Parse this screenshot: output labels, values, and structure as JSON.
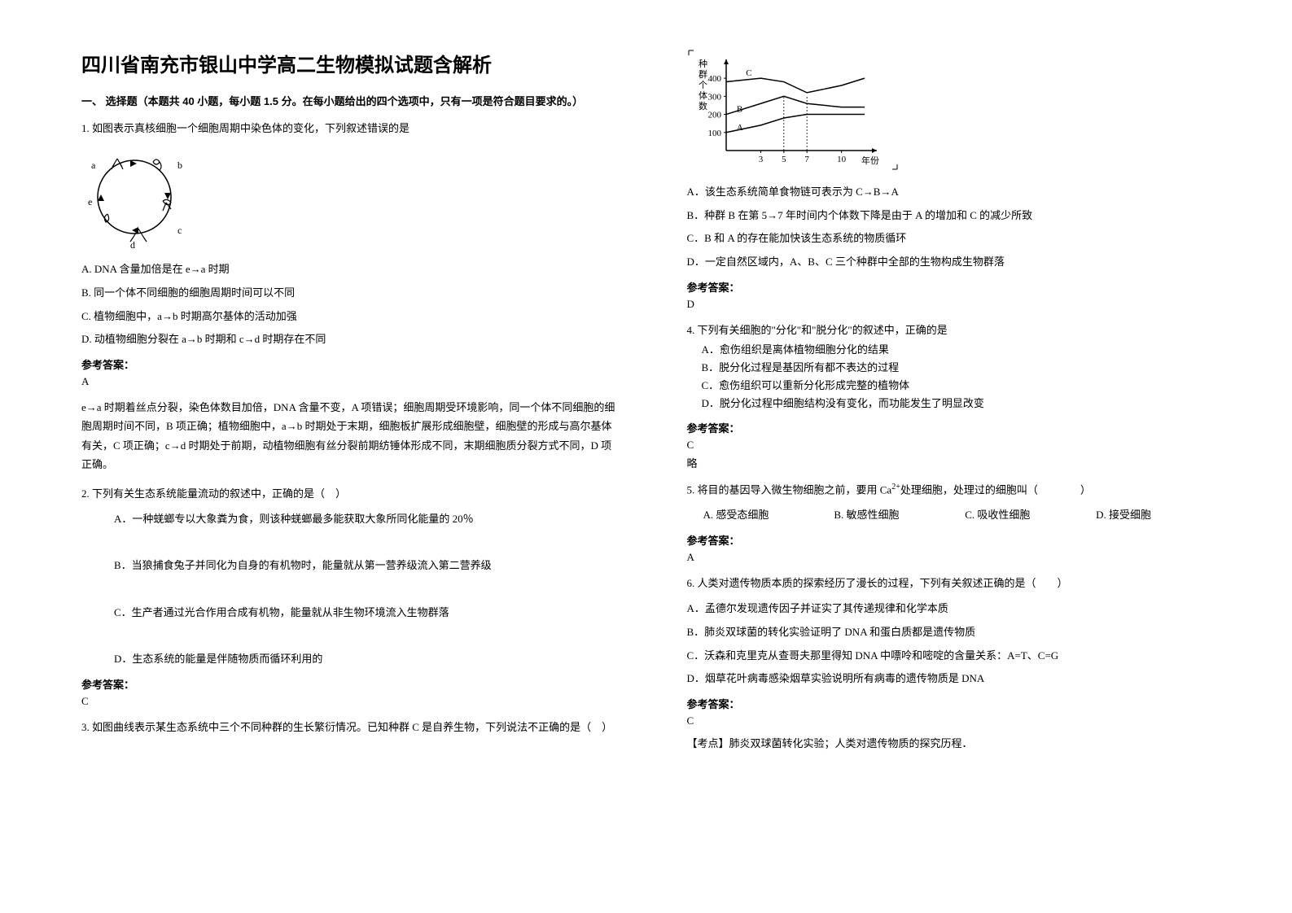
{
  "title": "四川省南充市银山中学高二生物模拟试题含解析",
  "section_header": "一、 选择题（本题共 40 小题，每小题 1.5 分。在每小题给出的四个选项中，只有一项是符合题目要求的。）",
  "answer_label": "参考答案：",
  "q1": {
    "stem": "1. 如图表示真核细胞一个细胞周期中染色体的变化，下列叙述错误的是",
    "optA": "A. DNA 含量加倍是在 e→a 时期",
    "optB": "B. 同一个体不同细胞的细胞周期时间可以不同",
    "optC": "C. 植物细胞中，a→b 时期高尔基体的活动加强",
    "optD": "D. 动植物细胞分裂在 a→b 时期和 c→d 时期存在不同",
    "answer": "A",
    "explanation": "e→a 时期着丝点分裂，染色体数目加倍，DNA 含量不变，A 项错误；细胞周期受环境影响，同一个体不同细胞的细胞周期时间不同，B 项正确；植物细胞中，a→b 时期处于末期，细胞板扩展形成细胞壁，细胞壁的形成与高尔基体有关，C 项正确；c→d 时期处于前期，动植物细胞有丝分裂前期纺锤体形成不同，末期细胞质分裂方式不同，D 项正确。",
    "diagram": {
      "labels": [
        "a",
        "b",
        "c",
        "d",
        "e"
      ],
      "stroke": "#000000",
      "fill": "#ffffff"
    }
  },
  "q2": {
    "stem": "2. 下列有关生态系统能量流动的叙述中，正确的是（　）",
    "optA": "A．一种蜣螂专以大象粪为食，则该种蜣螂最多能获取大象所同化能量的 20％",
    "optB": "B．当狼捕食兔子并同化为自身的有机物时，能量就从第一营养级流入第二营养级",
    "optC": "C．生产者通过光合作用合成有机物，能量就从非生物环境流入生物群落",
    "optD": "D．生态系统的能量是伴随物质而循环利用的",
    "answer": "C"
  },
  "q3": {
    "stem": "3. 如图曲线表示某生态系统中三个不同种群的生长繁衍情况。已知种群 C 是自养生物，下列说法不正确的是（　）",
    "chart": {
      "type": "line",
      "x_label": "年份",
      "y_label": "种群个体数",
      "x_ticks": [
        3,
        5,
        7,
        10
      ],
      "y_ticks": [
        100,
        200,
        300,
        400
      ],
      "series": [
        {
          "name": "A",
          "label_x": 0.7,
          "label_y": 100,
          "color": "#000000"
        },
        {
          "name": "B",
          "label_x": 0.7,
          "label_y": 200,
          "color": "#000000"
        },
        {
          "name": "C",
          "label_x": 1.5,
          "label_y": 400,
          "color": "#000000"
        }
      ],
      "curve_A": [
        [
          0,
          100
        ],
        [
          3,
          140
        ],
        [
          5,
          180
        ],
        [
          7,
          200
        ],
        [
          10,
          200
        ],
        [
          12,
          200
        ]
      ],
      "curve_B": [
        [
          0,
          200
        ],
        [
          3,
          260
        ],
        [
          5,
          300
        ],
        [
          7,
          260
        ],
        [
          10,
          240
        ],
        [
          12,
          240
        ]
      ],
      "curve_C": [
        [
          0,
          380
        ],
        [
          3,
          400
        ],
        [
          5,
          380
        ],
        [
          7,
          320
        ],
        [
          10,
          360
        ],
        [
          12,
          400
        ]
      ],
      "axis_color": "#000000",
      "font_size": 11
    },
    "optA": "A．该生态系统简单食物链可表示为 C→B→A",
    "optB": "B．种群 B 在第 5→7 年时间内个体数下降是由于 A 的增加和 C 的减少所致",
    "optC": "C．B 和 A 的存在能加快该生态系统的物质循环",
    "optD": "D．一定自然区域内，A、B、C 三个种群中全部的生物构成生物群落",
    "answer": "D"
  },
  "q4": {
    "stem": "4. 下列有关细胞的\"分化\"和\"脱分化\"的叙述中，正确的是",
    "optA": "A．愈伤组织是离体植物细胞分化的结果",
    "optB": "B．脱分化过程是基因所有都不表达的过程",
    "optC": "C．愈伤组织可以重新分化形成完整的植物体",
    "optD": "D．脱分化过程中细胞结构没有变化，而功能发生了明显改变",
    "answer": "C",
    "note": "略"
  },
  "q5": {
    "stem_pre": "5. 将目的基因导入微生物细胞之前，要用 Ca",
    "stem_sup": "2+",
    "stem_post": "处理细胞，处理过的细胞叫（　　　　）",
    "optA": "A. 感受态细胞",
    "optB": "B. 敏感性细胞",
    "optC": "C. 吸收性细胞",
    "optD": "D. 接受细胞",
    "answer": "A"
  },
  "q6": {
    "stem": "6. 人类对遗传物质本质的探索经历了漫长的过程，下列有关叙述正确的是（　　）",
    "optA": "A．孟德尔发现遗传因子并证实了其传递规律和化学本质",
    "optB": "B．肺炎双球菌的转化实验证明了 DNA 和蛋白质都是遗传物质",
    "optC": "C．沃森和克里克从查哥夫那里得知 DNA 中嘌呤和嘧啶的含量关系：A=T、C=G",
    "optD": "D．烟草花叶病毒感染烟草实验说明所有病毒的遗传物质是 DNA",
    "answer": "C",
    "topic": "【考点】肺炎双球菌转化实验；人类对遗传物质的探究历程．"
  }
}
